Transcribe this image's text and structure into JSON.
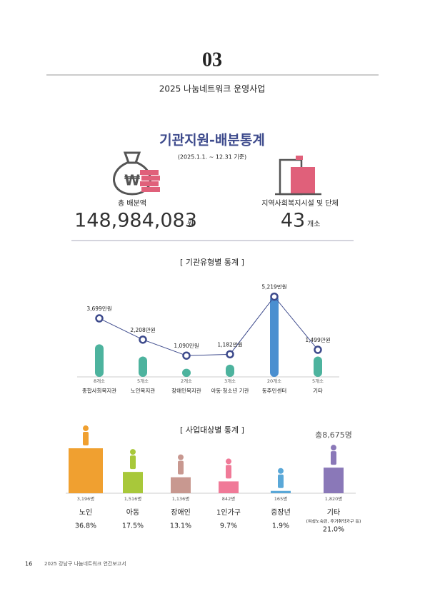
{
  "header": {
    "number": "03",
    "subtitle": "2025 나눔네트워크 운영사업"
  },
  "section": {
    "title": "기관지원-배분통계",
    "period": "(2025.1.1. ~ 12.31 기준)"
  },
  "summary": {
    "amount_label": "총 배분액",
    "amount": "148,984,083",
    "amount_unit": "원",
    "org_label": "지역사회복지시설 및 단체",
    "org_count": "43",
    "org_unit": "개소"
  },
  "chart_data": [
    {
      "type": "bar",
      "title": "[ 기관유형별 통계 ]",
      "categories": [
        "종합사회복지관",
        "노인복지관",
        "장애인복지관",
        "아동·청소년 기관",
        "동주민센터",
        "기타"
      ],
      "values": [
        8,
        5,
        2,
        3,
        20,
        5
      ],
      "value_labels": [
        "8개소",
        "5개소",
        "2개소",
        "3개소",
        "20개소",
        "5개소"
      ],
      "colors": [
        "#4db39e",
        "#4db39e",
        "#4db39e",
        "#4db39e",
        "#4a8fd0",
        "#4db39e"
      ],
      "line": {
        "values": [
          3699,
          2208,
          1090,
          1182,
          5219,
          1499
        ],
        "value_labels": [
          "3,699만원",
          "2,208만원",
          "1,090만원",
          "1,182만원",
          "5,219만원",
          "1,499만원"
        ],
        "color": "#3d4a8c"
      }
    },
    {
      "type": "bar",
      "title": "[ 사업대상별 통계 ]",
      "total": "총8,675명",
      "categories": [
        "노인",
        "아동",
        "장애인",
        "1인가구",
        "중장년",
        "기타"
      ],
      "values": [
        3196,
        1516,
        1136,
        842,
        165,
        1820
      ],
      "value_labels": [
        "3,196명",
        "1,516명",
        "1,136명",
        "842명",
        "165명",
        "1,820명"
      ],
      "shares": [
        36.8,
        17.5,
        13.1,
        9.7,
        1.9,
        21.0
      ],
      "share_labels": [
        "36.8%",
        "17.5%",
        "13.1%",
        "9.7%",
        "1.9%",
        "21.0%"
      ],
      "note": "(여성노숙인, 주거취약가구 등)",
      "colors": [
        "#f0a030",
        "#a8c83a",
        "#c89890",
        "#f07a98",
        "#5aa8d8",
        "#8a78b8"
      ]
    }
  ],
  "footer": {
    "page": "16",
    "title": "2025 강남구 나눔네트워크 연간보고서"
  }
}
